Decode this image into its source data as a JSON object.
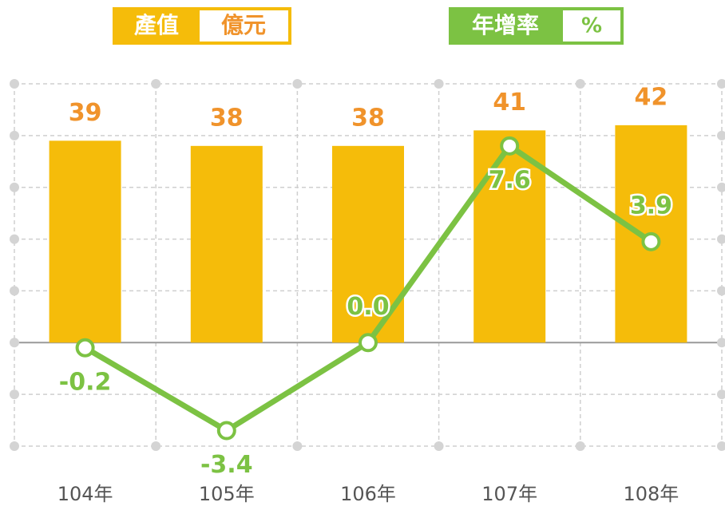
{
  "chart_data": {
    "type": "bar-line",
    "categories": [
      "104年",
      "105年",
      "106年",
      "107年",
      "108年"
    ],
    "series": [
      {
        "name": "產值",
        "unit": "億元",
        "color": "#f5bc0a",
        "label_color": "#f0932b",
        "type": "bar",
        "values": [
          39,
          38,
          38,
          41,
          42
        ]
      },
      {
        "name": "年增率",
        "unit": "%",
        "color": "#7cc243",
        "type": "line",
        "axis": "y2",
        "values": [
          -0.2,
          -3.4,
          0,
          7.6,
          3.9
        ],
        "value_labels": [
          "-0.2",
          "-3.4",
          "0.0",
          "7.6",
          "3.9"
        ]
      }
    ],
    "ylim": [
      -20,
      50
    ],
    "yticks": [
      -20,
      -10,
      0,
      10,
      20,
      30,
      40,
      50
    ],
    "y2lim": [
      -4,
      10
    ],
    "grid": true
  }
}
